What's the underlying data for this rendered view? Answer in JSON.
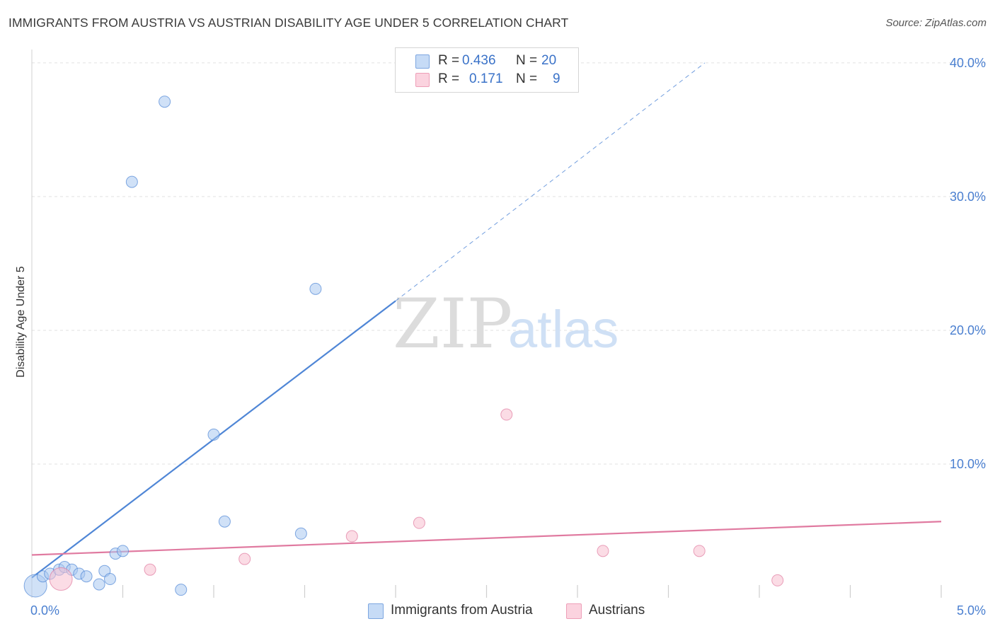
{
  "header": {
    "title": "IMMIGRANTS FROM AUSTRIA VS AUSTRIAN DISABILITY AGE UNDER 5 CORRELATION CHART",
    "source": "Source: ZipAtlas.com"
  },
  "legend": {
    "rows": [
      {
        "r_label": "R =",
        "r_value": "0.436",
        "n_label": "N =",
        "n_value": "20",
        "color": "#a9c8f0"
      },
      {
        "r_label": "R =",
        "r_value": "0.171",
        "n_label": "N =",
        "n_value": "9",
        "color": "#f7bfd0"
      }
    ]
  },
  "bottom_legend": {
    "items": [
      {
        "label": "Immigrants from Austria",
        "color": "#a9c8f0"
      },
      {
        "label": "Austrians",
        "color": "#f7bfd0"
      }
    ]
  },
  "watermark": {
    "zip": "ZIP",
    "atlas": "atlas"
  },
  "chart_data": {
    "type": "scatter",
    "title": "IMMIGRANTS FROM AUSTRIA VS AUSTRIAN DISABILITY AGE UNDER 5 CORRELATION CHART",
    "xlabel": "",
    "ylabel": "Disability Age Under 5",
    "xlim": [
      0,
      5
    ],
    "ylim": [
      0,
      41
    ],
    "x_tick_labels": [
      {
        "value": 0,
        "label": "0.0%"
      },
      {
        "value": 5,
        "label": "5.0%"
      }
    ],
    "y_tick_labels": [
      {
        "value": 10,
        "label": "10.0%"
      },
      {
        "value": 20,
        "label": "20.0%"
      },
      {
        "value": 30,
        "label": "30.0%"
      },
      {
        "value": 40,
        "label": "40.0%"
      }
    ],
    "grid": true,
    "legend_position": "top-center",
    "series": [
      {
        "name": "Immigrants from Austria",
        "color": "#4f86d6",
        "fill": "#a9c8f0",
        "points": [
          {
            "x": 0.02,
            "y": 0.9,
            "big": true
          },
          {
            "x": 0.06,
            "y": 1.6
          },
          {
            "x": 0.1,
            "y": 1.8
          },
          {
            "x": 0.15,
            "y": 2.1
          },
          {
            "x": 0.18,
            "y": 2.3
          },
          {
            "x": 0.22,
            "y": 2.1
          },
          {
            "x": 0.26,
            "y": 1.8
          },
          {
            "x": 0.3,
            "y": 1.6
          },
          {
            "x": 0.37,
            "y": 1.0
          },
          {
            "x": 0.4,
            "y": 2.0
          },
          {
            "x": 0.43,
            "y": 1.4
          },
          {
            "x": 0.46,
            "y": 3.3
          },
          {
            "x": 0.5,
            "y": 3.5
          },
          {
            "x": 0.55,
            "y": 31.1
          },
          {
            "x": 0.73,
            "y": 37.1
          },
          {
            "x": 0.82,
            "y": 0.6
          },
          {
            "x": 1.0,
            "y": 12.2
          },
          {
            "x": 1.06,
            "y": 5.7
          },
          {
            "x": 1.48,
            "y": 4.8
          },
          {
            "x": 1.56,
            "y": 23.1
          }
        ],
        "trend": {
          "x": [
            0,
            2.0
          ],
          "y": [
            1.5,
            22.2
          ],
          "dashed_to": {
            "x": 3.7,
            "y": 40.0
          }
        }
      },
      {
        "name": "Austrians",
        "color": "#e07aa0",
        "fill": "#f7bfd0",
        "points": [
          {
            "x": 0.16,
            "y": 1.4,
            "big": true
          },
          {
            "x": 0.65,
            "y": 2.1
          },
          {
            "x": 1.17,
            "y": 2.9
          },
          {
            "x": 1.76,
            "y": 4.6
          },
          {
            "x": 2.13,
            "y": 5.6
          },
          {
            "x": 2.61,
            "y": 13.7
          },
          {
            "x": 3.14,
            "y": 3.5
          },
          {
            "x": 3.67,
            "y": 3.5
          },
          {
            "x": 4.1,
            "y": 1.3
          }
        ],
        "trend": {
          "x": [
            0,
            5.0
          ],
          "y": [
            3.2,
            5.7
          ]
        }
      }
    ]
  }
}
